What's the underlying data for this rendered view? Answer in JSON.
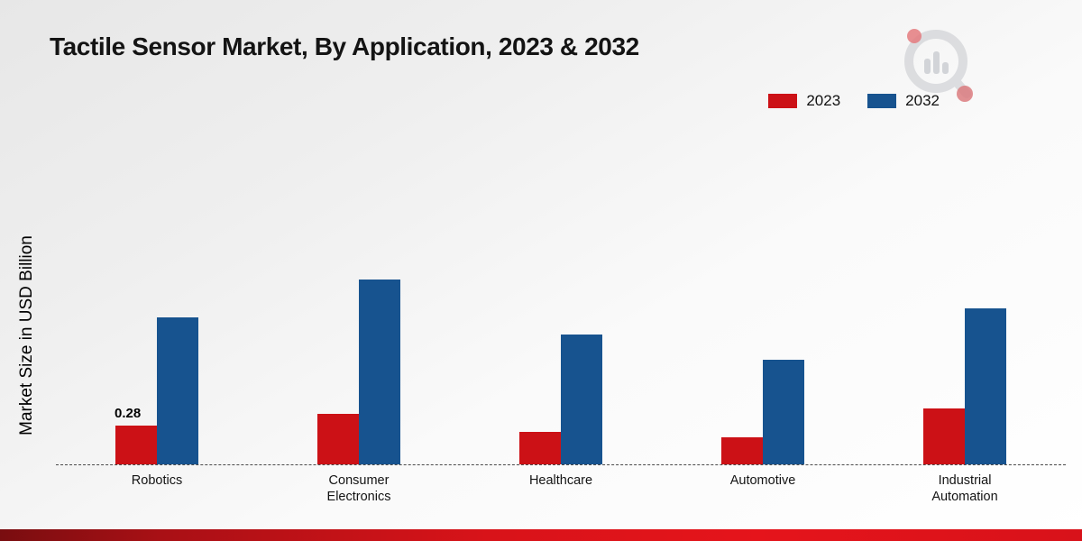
{
  "header": {
    "title": "Tactile Sensor Market, By Application, 2023 & 2032",
    "logo": "magnifier-bar-chart-logo"
  },
  "axes": {
    "ylabel": "Market Size in USD Billion"
  },
  "chart_data": {
    "type": "bar",
    "title": "Tactile Sensor Market, By Application, 2023 & 2032",
    "xlabel": "",
    "ylabel": "Market Size in USD Billion",
    "categories": [
      "Robotics",
      "Consumer Electronics",
      "Healthcare",
      "Automotive",
      "Industrial Automation"
    ],
    "series": [
      {
        "name": "2023",
        "color": "#cc1116",
        "values": [
          0.28,
          0.37,
          0.24,
          0.2,
          0.41
        ]
      },
      {
        "name": "2032",
        "color": "#17538f",
        "values": [
          1.07,
          1.35,
          0.95,
          0.76,
          1.14
        ]
      }
    ],
    "annotations": [
      {
        "series": 0,
        "category": 0,
        "text": "0.28"
      }
    ],
    "ylim": [
      0,
      1.6
    ],
    "grid": false,
    "baseline_style": "dashed",
    "legend_position": "top-right"
  },
  "footer": {
    "band_colors": [
      "#790d10",
      "#e5141b"
    ]
  }
}
